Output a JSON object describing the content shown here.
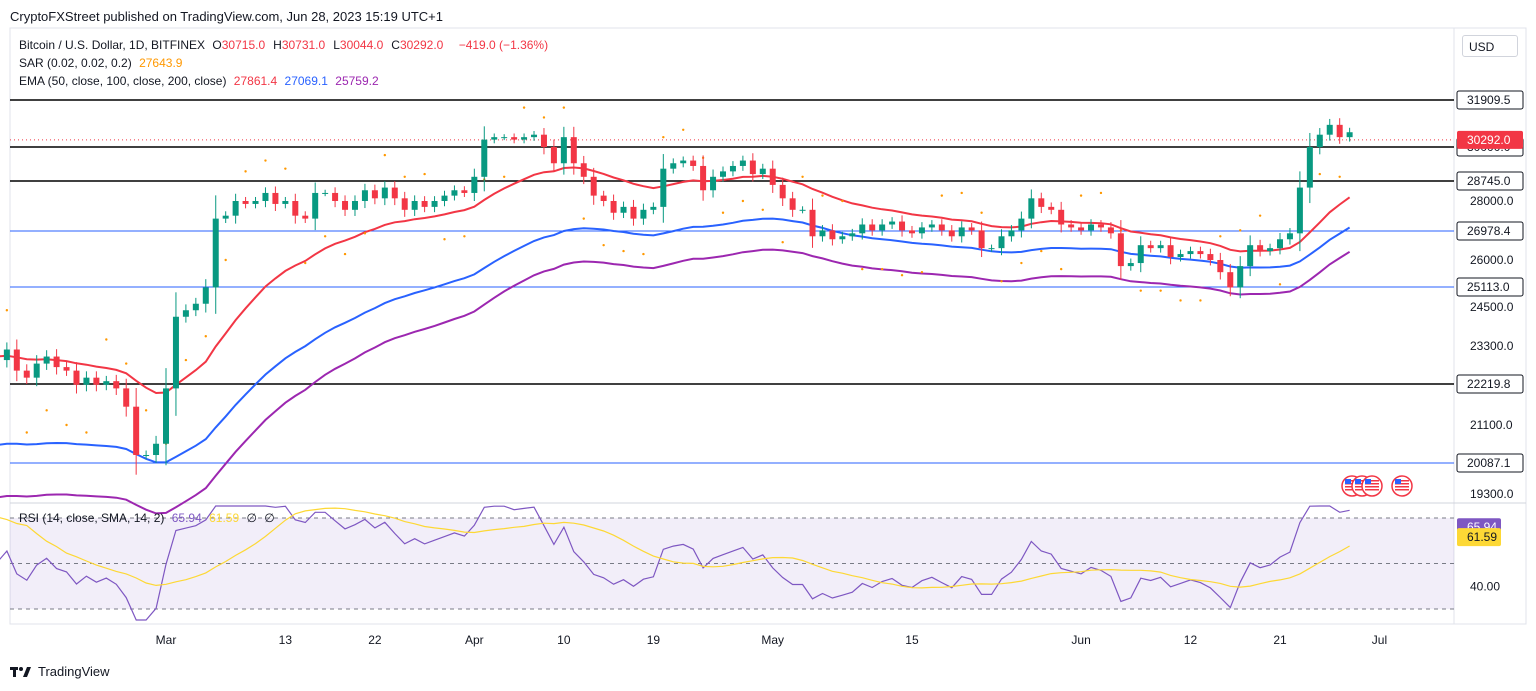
{
  "header": {
    "text": "CryptoFXStreet published on TradingView.com, Jun 28, 2023 15:19 UTC+1"
  },
  "footer": {
    "brand": "TradingView"
  },
  "currency": "USD",
  "legend": {
    "symbol": "Bitcoin / U.S. Dollar, 1D, BITFINEX",
    "ohlc": [
      {
        "k": "O",
        "v": "30715.0"
      },
      {
        "k": "H",
        "v": "30731.0"
      },
      {
        "k": "L",
        "v": "30044.0"
      },
      {
        "k": "C",
        "v": "30292.0"
      }
    ],
    "change": "−419.0 (−1.36%)",
    "sar_label": "SAR (0.02, 0.02, 0.2)",
    "sar_value": "27643.9",
    "ema_label": "EMA (50, close, 100, close, 200, close)",
    "ema_values": [
      "27861.4",
      "27069.1",
      "25759.2"
    ],
    "rsi_label": "RSI (14, close, SMA, 14, 2)",
    "rsi_values": [
      "65.94",
      "61.59",
      "∅",
      "∅"
    ]
  },
  "colors": {
    "up": "#089981",
    "down": "#f23645",
    "sar": "#ff9800",
    "ema50": "#f23645",
    "ema100": "#2962ff",
    "ema200": "#9c27b0",
    "rsi": "#7e57c2",
    "rsi_sma": "#fdd835",
    "hline_black": "#000000",
    "hline_blue": "#2962ff"
  },
  "chart_data": {
    "type": "candlestick",
    "ylim": [
      19000,
      33000
    ],
    "y_ticks": [
      19300.0,
      21100.0,
      23300.0,
      24500.0,
      26000.0,
      28000.0
    ],
    "x_ticks": [
      "Mar",
      "13",
      "22",
      "Apr",
      "10",
      "19",
      "May",
      "15",
      "Jun",
      "12",
      "21",
      "Jul"
    ],
    "x_tick_dates": [
      "2023-03-01",
      "2023-03-13",
      "2023-03-22",
      "2023-04-01",
      "2023-04-10",
      "2023-04-19",
      "2023-05-01",
      "2023-05-15",
      "2023-06-01",
      "2023-06-12",
      "2023-06-21",
      "2023-07-01"
    ],
    "horizontal_levels": [
      {
        "value": 31909.5,
        "color": "black"
      },
      {
        "value": 30000.0,
        "color": "black"
      },
      {
        "value": 28745.0,
        "color": "black"
      },
      {
        "value": 26978.4,
        "color": "blue"
      },
      {
        "value": 25113.0,
        "color": "blue"
      },
      {
        "value": 22219.8,
        "color": "black"
      },
      {
        "value": 20087.1,
        "color": "blue"
      }
    ],
    "last_price": 30292.0,
    "candles_close": [
      22200,
      23600,
      23700,
      23400,
      24000,
      23300,
      23800,
      23700,
      23500,
      23400,
      22900,
      22900,
      23200,
      22600,
      22400,
      22800,
      23000,
      22700,
      22600,
      22200,
      22400,
      22200,
      22300,
      22100,
      21600,
      20300,
      20300,
      20600,
      22100,
      24200,
      24400,
      24600,
      25100,
      27400,
      27500,
      28000,
      27900,
      28000,
      28300,
      27900,
      28000,
      27500,
      27400,
      28300,
      28300,
      28000,
      27700,
      28000,
      28400,
      28100,
      28500,
      28100,
      27700,
      28000,
      27800,
      28000,
      28200,
      28400,
      28300,
      28900,
      30300,
      30400,
      30400,
      30300,
      30400,
      30500,
      30000,
      29400,
      30400,
      29400,
      28900,
      28200,
      28000,
      27600,
      27800,
      27400,
      27700,
      27800,
      29200,
      29400,
      29500,
      29300,
      28400,
      28900,
      29100,
      29300,
      29500,
      29000,
      29200,
      28600,
      28100,
      27700,
      27700,
      26800,
      27000,
      26700,
      26800,
      26900,
      27200,
      27000,
      27200,
      27300,
      27000,
      26900,
      27100,
      27200,
      27000,
      26800,
      27100,
      27000,
      26400,
      26400,
      26800,
      27000,
      27400,
      28100,
      27800,
      27700,
      27200,
      27100,
      27000,
      27200,
      27100,
      26900,
      25800,
      25900,
      26500,
      26400,
      26500,
      26100,
      26200,
      26300,
      26200,
      26000,
      25600,
      25100,
      25800,
      26500,
      26300,
      26400,
      26700,
      26900,
      28500,
      30000,
      30500,
      30900,
      30400,
      30600,
      30500,
      30200,
      30700,
      30292
    ],
    "ema50_end": 27861.4,
    "ema100_end": 27069.1,
    "ema200_end": 25759.2,
    "sar_end": 27643.9,
    "rsi": {
      "ylim": [
        20,
        90
      ],
      "y_ticks": [
        40.0
      ],
      "levels": [
        70,
        50,
        30
      ],
      "last_rsi": 65.94,
      "last_sma": 61.59
    }
  },
  "flags": {
    "alt": "us-flag"
  }
}
